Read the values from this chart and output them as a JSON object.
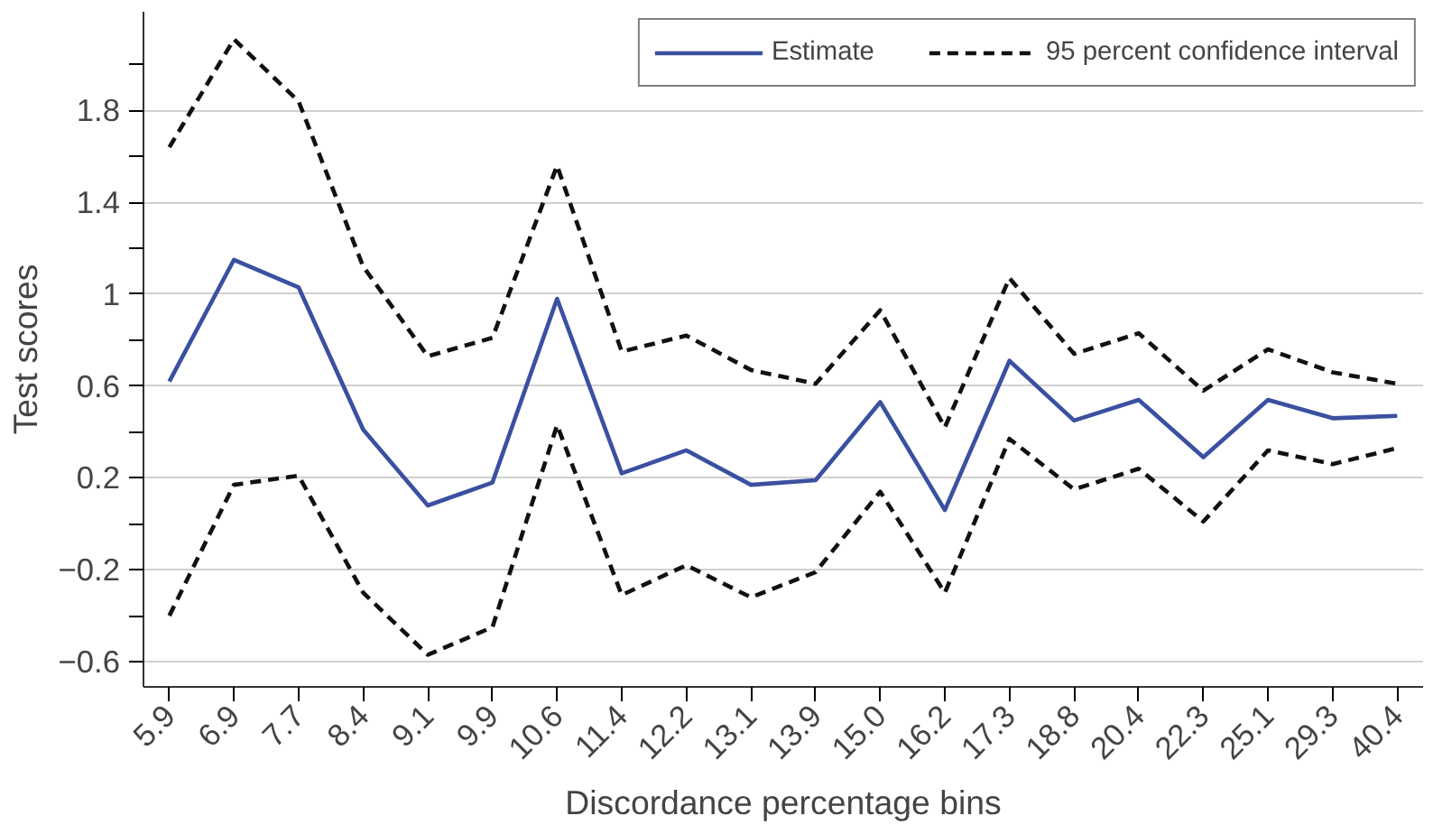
{
  "chart_data": {
    "type": "line",
    "xlabel": "Discordance percentage bins",
    "ylabel": "Test scores",
    "categories": [
      "5.9",
      "6.9",
      "7.7",
      "8.4",
      "9.1",
      "9.9",
      "10.6",
      "11.4",
      "12.2",
      "13.1",
      "13.9",
      "15.0",
      "16.2",
      "17.3",
      "18.8",
      "20.4",
      "22.3",
      "25.1",
      "29.3",
      "40.4"
    ],
    "series": [
      {
        "name": "Estimate",
        "color": "#3a50a0",
        "line_style": "solid",
        "values": [
          0.62,
          1.15,
          1.03,
          0.41,
          0.08,
          0.18,
          0.98,
          0.22,
          0.32,
          0.17,
          0.19,
          0.53,
          0.06,
          0.71,
          0.45,
          0.54,
          0.29,
          0.54,
          0.46,
          0.47
        ]
      },
      {
        "name": "95 percent confidence interval",
        "color": "#111111",
        "line_style": "dashed",
        "values": [
          1.64,
          2.11,
          1.84,
          1.12,
          0.73,
          0.81,
          1.56,
          0.75,
          0.82,
          0.67,
          0.61,
          0.93,
          0.42,
          1.07,
          0.74,
          0.83,
          0.58,
          0.76,
          0.66,
          0.61
        ]
      },
      {
        "color": "#111111",
        "line_style": "dashed",
        "values": [
          -0.4,
          0.17,
          0.21,
          -0.3,
          -0.57,
          -0.45,
          0.43,
          -0.31,
          -0.18,
          -0.32,
          -0.21,
          0.14,
          -0.3,
          0.37,
          0.15,
          0.24,
          0.01,
          0.32,
          0.26,
          0.33
        ]
      }
    ],
    "ylim": [
      -0.71,
      2.23
    ],
    "yticks": [
      {
        "value": -0.6,
        "label": "−0.6"
      },
      {
        "value": -0.4,
        "label": null
      },
      {
        "value": -0.2,
        "label": "−0.2"
      },
      {
        "value": 0,
        "label": null
      },
      0.2,
      {
        "value": 0.4,
        "label": null
      },
      0.6,
      {
        "value": 0.8,
        "label": null
      },
      1,
      {
        "value": 1.2,
        "label": null
      },
      1.4,
      {
        "value": 1.6,
        "label": null
      },
      1.8,
      {
        "value": 2.0,
        "label": null
      }
    ],
    "grid": "y",
    "legend": "top right",
    "marker": "none"
  }
}
